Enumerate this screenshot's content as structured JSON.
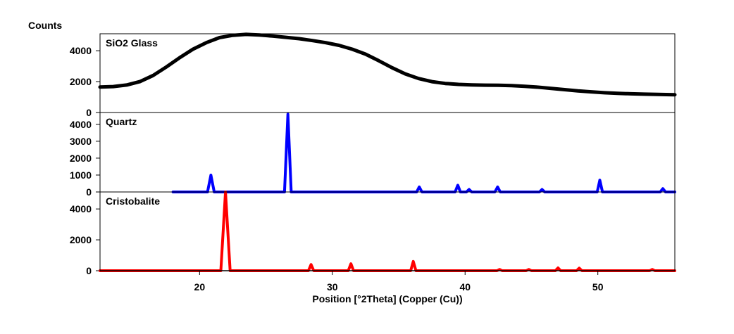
{
  "chart_data": {
    "type": "line",
    "y_axis_title": "Counts",
    "x_axis_title": "Position [°2Theta] (Copper (Cu))",
    "xlim": [
      12.5,
      55.8
    ],
    "x_ticks": [
      20,
      30,
      40,
      50
    ],
    "panels": [
      {
        "name": "SiO2 Glass",
        "color": "#000000",
        "ylim": [
          0,
          5100
        ],
        "y_ticks": [
          0,
          2000,
          4000
        ],
        "series": {
          "x": [
            12.5,
            13.5,
            14.5,
            15.5,
            16.5,
            17.5,
            18.5,
            19.5,
            20.5,
            21.5,
            22.5,
            23.5,
            24.5,
            25.5,
            26.5,
            27.5,
            28.5,
            29.5,
            30.5,
            31.5,
            32.5,
            33.5,
            34.5,
            35.5,
            36.5,
            37.5,
            38.5,
            39.5,
            40.5,
            41.5,
            42.5,
            43.5,
            44.5,
            45.5,
            46.5,
            47.5,
            48.5,
            49.5,
            50.5,
            51.5,
            52.5,
            53.5,
            54.5,
            55.8
          ],
          "y": [
            1650,
            1680,
            1780,
            2000,
            2400,
            2950,
            3550,
            4100,
            4520,
            4850,
            5000,
            5060,
            5020,
            4950,
            4870,
            4780,
            4660,
            4520,
            4350,
            4100,
            3780,
            3350,
            2900,
            2500,
            2200,
            2000,
            1880,
            1820,
            1790,
            1770,
            1760,
            1740,
            1700,
            1640,
            1560,
            1480,
            1400,
            1340,
            1280,
            1240,
            1210,
            1190,
            1170,
            1150
          ]
        }
      },
      {
        "name": "Quartz",
        "color": "#0000ff",
        "ylim": [
          0,
          4700
        ],
        "y_ticks": [
          0,
          1000,
          2000,
          3000,
          4000
        ],
        "series": {
          "x": [
            18.0,
            20.6,
            20.85,
            21.1,
            26.4,
            26.65,
            26.9,
            36.35,
            36.55,
            36.75,
            39.25,
            39.45,
            39.65,
            40.1,
            40.3,
            40.5,
            42.25,
            42.45,
            42.65,
            45.6,
            45.8,
            46.0,
            49.95,
            50.15,
            50.35,
            54.7,
            54.9,
            55.1,
            55.8
          ],
          "y": [
            0,
            0,
            1000,
            0,
            0,
            4600,
            0,
            0,
            300,
            0,
            0,
            400,
            0,
            0,
            150,
            0,
            0,
            300,
            0,
            0,
            150,
            0,
            0,
            700,
            0,
            0,
            200,
            0,
            0
          ]
        }
      },
      {
        "name": "Cristobalite",
        "color": "#ff0000",
        "ylim": [
          0,
          5100
        ],
        "y_ticks": [
          0,
          2000,
          4000
        ],
        "series": {
          "x": [
            12.5,
            21.6,
            21.95,
            22.3,
            28.2,
            28.4,
            28.6,
            31.2,
            31.4,
            31.6,
            35.9,
            36.1,
            36.3,
            42.4,
            42.6,
            42.8,
            44.6,
            44.8,
            45.0,
            46.8,
            47.0,
            47.2,
            48.4,
            48.6,
            48.8,
            53.9,
            54.1,
            54.3,
            55.8
          ],
          "y": [
            0,
            0,
            5100,
            0,
            0,
            400,
            0,
            0,
            450,
            0,
            0,
            600,
            0,
            0,
            80,
            0,
            0,
            80,
            0,
            0,
            180,
            0,
            0,
            170,
            0,
            0,
            80,
            0,
            0
          ]
        }
      }
    ]
  }
}
